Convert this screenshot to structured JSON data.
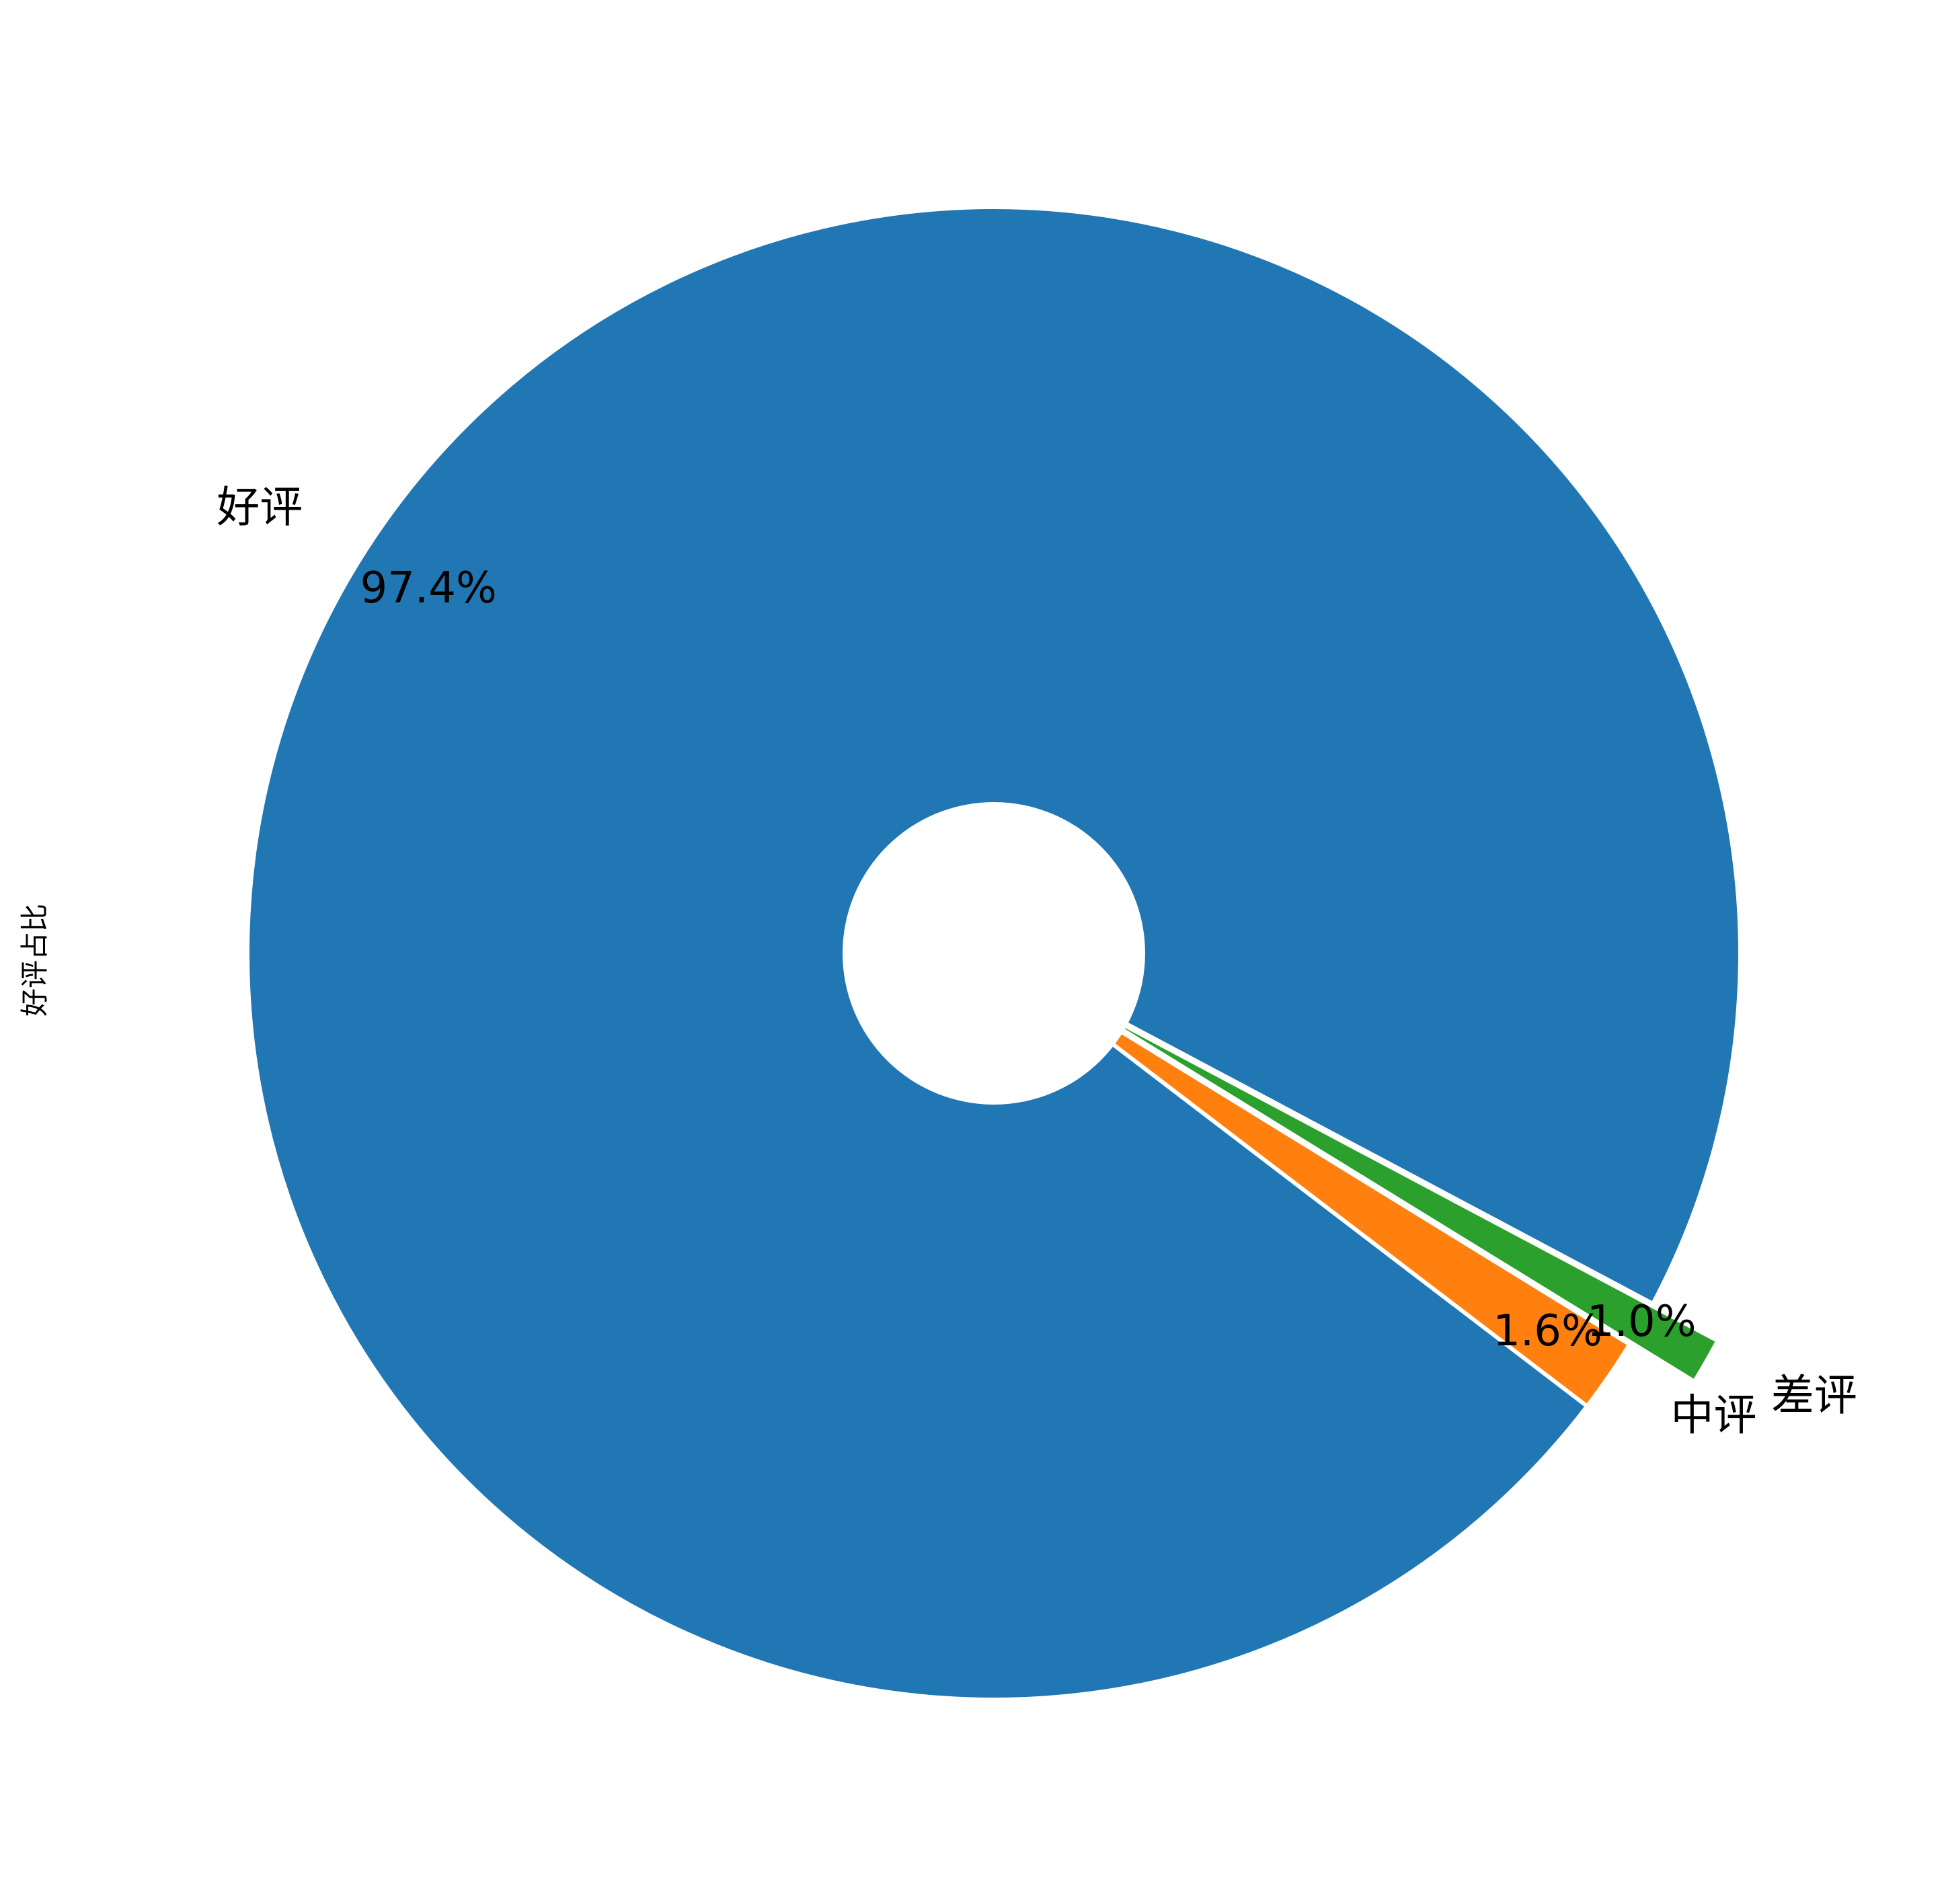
{
  "chart_data": {
    "type": "pie",
    "ylabel": "好评占比",
    "donut": true,
    "start_angle_deg": -28,
    "slices": [
      {
        "label": "好评",
        "value": 97.4,
        "pct_text": "97.4%",
        "color": "#2077b4",
        "explode": 0
      },
      {
        "label": "中评",
        "value": 1.6,
        "pct_text": "1.6%",
        "color": "#ff7f0f",
        "explode": 0
      },
      {
        "label": "差评",
        "value": 1.0,
        "pct_text": "1.0%",
        "color": "#2ca02c",
        "explode": 0.1
      }
    ],
    "edge_color": "#ffffff"
  }
}
